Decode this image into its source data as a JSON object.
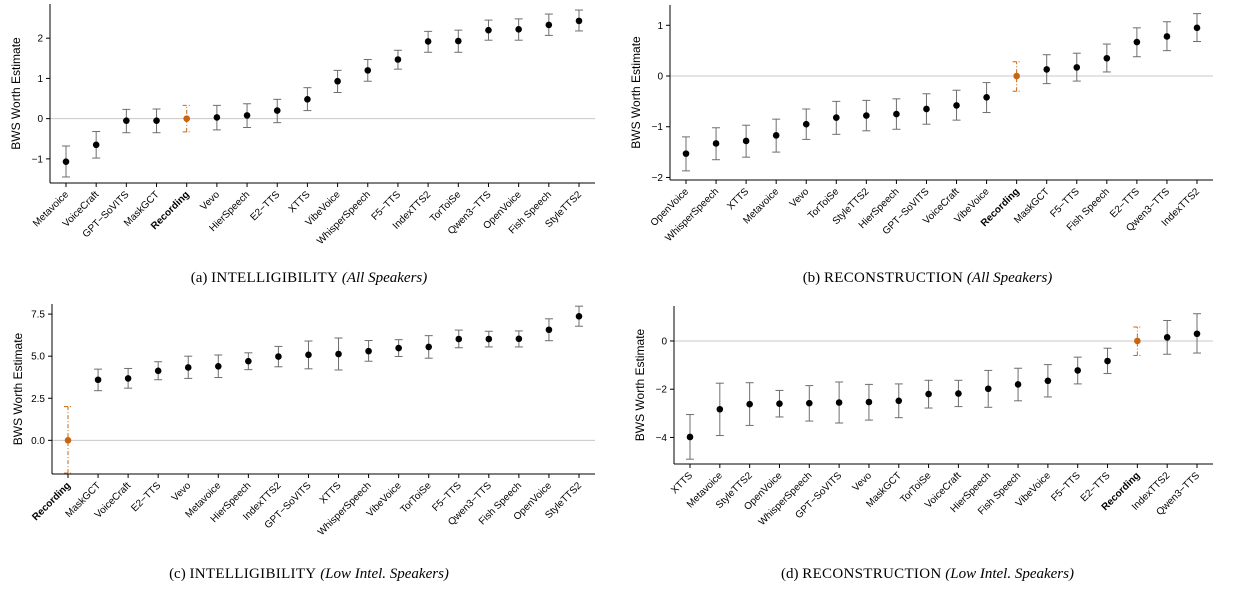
{
  "ylabel": "BWS Worth Estimate",
  "colors": {
    "model": "#000000",
    "recording": "#c8650f",
    "errorbar": "#6e6e6e",
    "baseline": "#c8c8c8",
    "axis": "#000000"
  },
  "chart_data": [
    {
      "type": "scatter",
      "panel_label": "(a)",
      "caption_name": "INTELLIGIBILITY",
      "caption_sub": "(All Speakers)",
      "ylabel": "BWS Worth Estimate",
      "ylim": [
        -1.6,
        2.85
      ],
      "yticks": [
        -1,
        0,
        1,
        2
      ],
      "ytick_labels": [
        "−1",
        "0",
        "1",
        "2"
      ],
      "baseline": 0,
      "categories": [
        "Metavoice",
        "VoiceCraft",
        "GPT−SoVITS",
        "MaskGCT",
        "Recording",
        "Vevo",
        "HierSpeech",
        "E2−TTS",
        "XTTS",
        "VibeVoice",
        "WhisperSpeech",
        "F5−TTS",
        "IndexTTS2",
        "TorToiSe",
        "Qwen3−TTS",
        "OpenVoice",
        "Fish Speech",
        "StyleTTS2"
      ],
      "values": [
        -1.07,
        -0.65,
        -0.05,
        -0.05,
        0.0,
        0.03,
        0.08,
        0.2,
        0.48,
        0.93,
        1.2,
        1.47,
        1.92,
        1.93,
        2.2,
        2.22,
        2.33,
        2.43
      ],
      "lower": [
        -1.45,
        -0.98,
        -0.35,
        -0.35,
        -0.33,
        -0.28,
        -0.22,
        -0.1,
        0.2,
        0.65,
        0.93,
        1.23,
        1.65,
        1.65,
        1.95,
        1.95,
        2.07,
        2.18
      ],
      "upper": [
        -0.68,
        -0.32,
        0.23,
        0.24,
        0.33,
        0.33,
        0.37,
        0.48,
        0.77,
        1.2,
        1.47,
        1.7,
        2.17,
        2.2,
        2.45,
        2.48,
        2.6,
        2.7
      ],
      "highlight": "Recording"
    },
    {
      "type": "scatter",
      "panel_label": "(b)",
      "caption_name": "RECONSTRUCTION",
      "caption_sub": "(All Speakers)",
      "ylabel": "BWS Worth Estimate",
      "ylim": [
        -2.05,
        1.4
      ],
      "yticks": [
        -2,
        -1,
        0,
        1
      ],
      "ytick_labels": [
        "−2",
        "−1",
        "0",
        "1"
      ],
      "baseline": 0,
      "categories": [
        "OpenVoice",
        "WhisperSpeech",
        "XTTS",
        "Metavoice",
        "Vevo",
        "TorToiSe",
        "StyleTTS2",
        "HierSpeech",
        "GPT−SoVITS",
        "VoiceCraft",
        "VibeVoice",
        "Recording",
        "MaskGCT",
        "F5−TTS",
        "Fish Speech",
        "E2−TTS",
        "Qwen3−TTS",
        "IndexTTS2"
      ],
      "values": [
        -1.53,
        -1.33,
        -1.28,
        -1.17,
        -0.95,
        -0.82,
        -0.78,
        -0.75,
        -0.65,
        -0.58,
        -0.42,
        0.0,
        0.13,
        0.17,
        0.35,
        0.67,
        0.78,
        0.95
      ],
      "lower": [
        -1.87,
        -1.65,
        -1.6,
        -1.5,
        -1.25,
        -1.15,
        -1.08,
        -1.05,
        -0.95,
        -0.87,
        -0.72,
        -0.3,
        -0.15,
        -0.1,
        0.08,
        0.38,
        0.5,
        0.68
      ],
      "upper": [
        -1.2,
        -1.02,
        -0.97,
        -0.85,
        -0.65,
        -0.5,
        -0.48,
        -0.45,
        -0.35,
        -0.28,
        -0.13,
        0.28,
        0.42,
        0.45,
        0.63,
        0.95,
        1.07,
        1.23
      ],
      "highlight": "Recording"
    },
    {
      "type": "scatter",
      "panel_label": "(c)",
      "caption_name": "INTELLIGIBILITY",
      "caption_sub": "(Low Intel. Speakers)",
      "ylabel": "BWS Worth Estimate",
      "ylim": [
        -2.0,
        8.1
      ],
      "yticks": [
        0,
        2.5,
        5,
        7.5
      ],
      "ytick_labels": [
        "0.0",
        "2.5",
        "5.0",
        "7.5"
      ],
      "baseline": 0,
      "categories": [
        "Recording",
        "MaskGCT",
        "VoiceCraft",
        "E2−TTS",
        "Vevo",
        "Metavoice",
        "HierSpeech",
        "IndexTTS2",
        "GPT−SoVITS",
        "XTTS",
        "WhisperSpeech",
        "VibeVoice",
        "TorToiSe",
        "F5−TTS",
        "Qwen3−TTS",
        "Fish Speech",
        "OpenVoice",
        "StyleTTS2"
      ],
      "values": [
        0.0,
        3.6,
        3.68,
        4.13,
        4.33,
        4.4,
        4.7,
        4.98,
        5.08,
        5.13,
        5.3,
        5.48,
        5.55,
        6.02,
        6.02,
        6.03,
        6.57,
        7.37
      ],
      "lower": [
        -1.95,
        2.95,
        3.1,
        3.6,
        3.68,
        3.73,
        4.2,
        4.37,
        4.25,
        4.18,
        4.7,
        4.98,
        4.88,
        5.5,
        5.55,
        5.55,
        5.92,
        6.78
      ],
      "upper": [
        2.0,
        4.23,
        4.27,
        4.67,
        5.0,
        5.07,
        5.2,
        5.58,
        5.9,
        6.08,
        5.93,
        5.98,
        6.22,
        6.55,
        6.48,
        6.5,
        7.22,
        7.97
      ],
      "highlight": "Recording"
    },
    {
      "type": "scatter",
      "panel_label": "(d)",
      "caption_name": "RECONSTRUCTION",
      "caption_sub": "(Low Intel. Speakers)",
      "ylabel": "BWS Worth Estimate",
      "ylim": [
        -5.1,
        1.45
      ],
      "yticks": [
        -4,
        -2,
        0
      ],
      "ytick_labels": [
        "−4",
        "−2",
        "0"
      ],
      "baseline": 0,
      "categories": [
        "XTTS",
        "Metavoice",
        "StyleTTS2",
        "OpenVoice",
        "WhisperSpeech",
        "GPT−SoVITS",
        "Vevo",
        "MaskGCT",
        "TorToiSe",
        "VoiceCraft",
        "HierSpeech",
        "Fish Speech",
        "VibeVoice",
        "F5−TTS",
        "E2−TTS",
        "Recording",
        "IndexTTS2",
        "Qwen3−TTS"
      ],
      "values": [
        -3.98,
        -2.83,
        -2.62,
        -2.6,
        -2.58,
        -2.55,
        -2.53,
        -2.48,
        -2.2,
        -2.18,
        -1.98,
        -1.8,
        -1.65,
        -1.22,
        -0.83,
        0.0,
        0.15,
        0.3
      ],
      "lower": [
        -4.9,
        -3.92,
        -3.5,
        -3.15,
        -3.32,
        -3.4,
        -3.28,
        -3.18,
        -2.78,
        -2.72,
        -2.75,
        -2.48,
        -2.32,
        -1.78,
        -1.35,
        -0.6,
        -0.55,
        -0.5
      ],
      "upper": [
        -3.05,
        -1.75,
        -1.73,
        -2.05,
        -1.85,
        -1.7,
        -1.8,
        -1.78,
        -1.63,
        -1.63,
        -1.22,
        -1.13,
        -0.98,
        -0.67,
        -0.3,
        0.58,
        0.85,
        1.13
      ],
      "highlight": "Recording"
    }
  ]
}
